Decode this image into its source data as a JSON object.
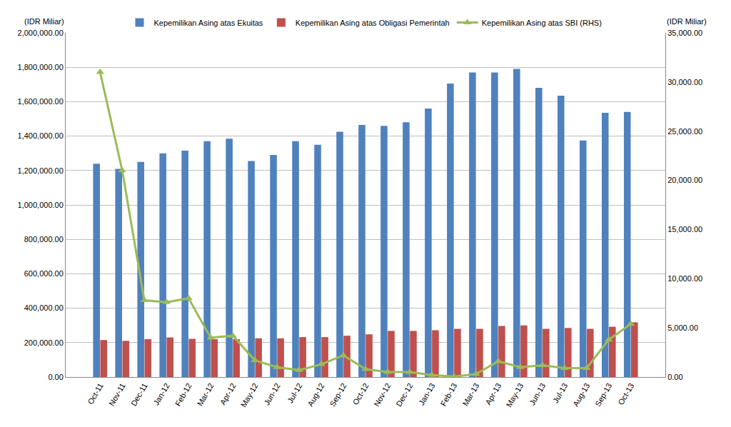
{
  "chart_data": {
    "type": "bar",
    "ylabel": "(IDR Miliar)",
    "y2label": "(IDR Miliar)",
    "categories": [
      "Oct-11",
      "Nov-11",
      "Dec-11",
      "Jan-12",
      "Feb-12",
      "Mar-12",
      "Apr-12",
      "May-12",
      "Jun-12",
      "Jul-12",
      "Aug-12",
      "Sep-12",
      "Oct-12",
      "Nov-12",
      "Dec-12",
      "Jan-13",
      "Feb-13",
      "Mar-13",
      "Apr-13",
      "May-13",
      "Jun-13",
      "Jul-13",
      "Aug-13",
      "Sep-13",
      "Oct-13"
    ],
    "series": [
      {
        "name": "Kepemilikan Asing atas Ekuitas",
        "type": "bar",
        "color": "#4f81bd",
        "values": [
          1240000,
          1210000,
          1250000,
          1300000,
          1315000,
          1370000,
          1385000,
          1255000,
          1290000,
          1370000,
          1350000,
          1425000,
          1465000,
          1460000,
          1480000,
          1560000,
          1705000,
          1770000,
          1770000,
          1790000,
          1680000,
          1635000,
          1375000,
          1535000,
          1540000
        ]
      },
      {
        "name": "Kepemilikan Asing atas Obligasi Pemerintah",
        "type": "bar",
        "color": "#c0504d",
        "values": [
          215000,
          210000,
          220000,
          230000,
          222000,
          220000,
          220000,
          225000,
          225000,
          232000,
          232000,
          240000,
          248000,
          268000,
          268000,
          272000,
          280000,
          280000,
          297000,
          300000,
          280000,
          285000,
          280000,
          292000,
          318000
        ]
      },
      {
        "name": "Kepemilikan Asing atas SBI (RHS)",
        "type": "line",
        "axis": "y2",
        "color": "#9bbb59",
        "marker": "triangle-up",
        "values": [
          31000,
          21000,
          7800,
          7600,
          8000,
          4000,
          4200,
          1700,
          1000,
          700,
          1300,
          2200,
          800,
          500,
          500,
          200,
          50,
          300,
          1600,
          1000,
          1200,
          900,
          900,
          3800,
          5400
        ]
      }
    ],
    "ylim": [
      0,
      2000000
    ],
    "yticks": [
      {
        "value": 0,
        "label": "0.00"
      },
      {
        "value": 200000,
        "label": "200,000.00"
      },
      {
        "value": 400000,
        "label": "400,000.00"
      },
      {
        "value": 600000,
        "label": "600,000.00"
      },
      {
        "value": 800000,
        "label": "800,000.00"
      },
      {
        "value": 1000000,
        "label": "1,000,000.00"
      },
      {
        "value": 1200000,
        "label": "1,200,000.00"
      },
      {
        "value": 1400000,
        "label": "1,400,000.00"
      },
      {
        "value": 1600000,
        "label": "1,600,000.00"
      },
      {
        "value": 1800000,
        "label": "1,800,000.00"
      },
      {
        "value": 2000000,
        "label": "2,000,000.00"
      }
    ],
    "y2lim": [
      0,
      35000
    ],
    "y2ticks": [
      {
        "value": 0,
        "label": "0.00"
      },
      {
        "value": 5000,
        "label": "5,000.00"
      },
      {
        "value": 10000,
        "label": "10,000.00"
      },
      {
        "value": 15000,
        "label": "15,000.00"
      },
      {
        "value": 20000,
        "label": "20,000.00"
      },
      {
        "value": 25000,
        "label": "25,000.00"
      },
      {
        "value": 30000,
        "label": "30,000.00"
      },
      {
        "value": 35000,
        "label": "35,000.00"
      }
    ],
    "grid": true,
    "legend": "top"
  }
}
